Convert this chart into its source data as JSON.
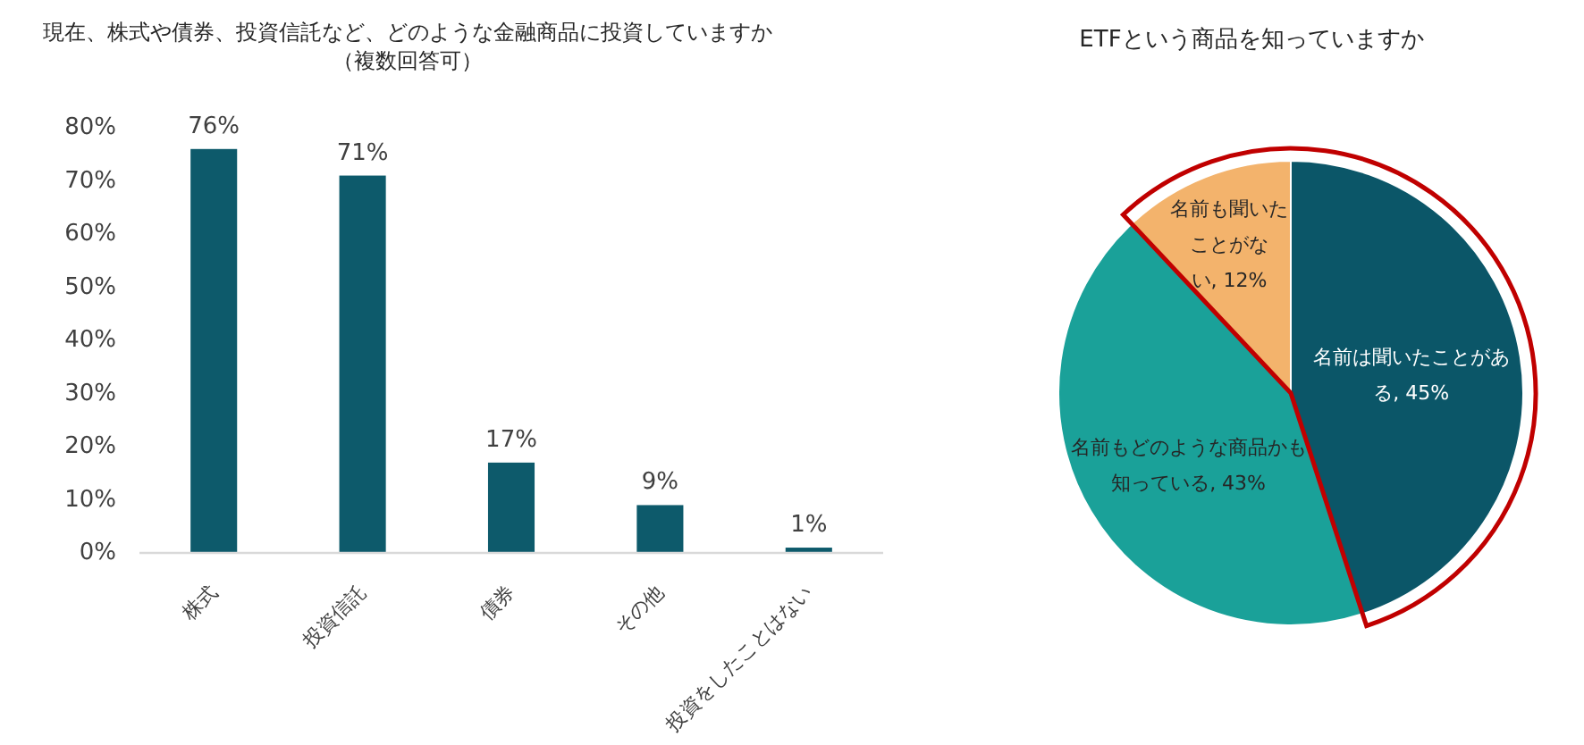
{
  "chart_data": [
    {
      "type": "bar",
      "title": "現在、株式や債券、投資信託など、どのような金融商品に投資していますか",
      "subtitle": "（複数回答可）",
      "categories": [
        "株式",
        "投資信託",
        "債券",
        "その他",
        "投資をしたことはない"
      ],
      "values": [
        76,
        71,
        17,
        9,
        1
      ],
      "color": "#0d5a6b",
      "value_labels": [
        "76%",
        "71%",
        "17%",
        "9%",
        "1%"
      ],
      "ylim": [
        0,
        80
      ],
      "yticks": [
        {
          "value": 0,
          "label": "0%"
        },
        {
          "value": 10,
          "label": "10%"
        },
        {
          "value": 20,
          "label": "20%"
        },
        {
          "value": 30,
          "label": "30%"
        },
        {
          "value": 40,
          "label": "40%"
        },
        {
          "value": 50,
          "label": "50%"
        },
        {
          "value": 60,
          "label": "60%"
        },
        {
          "value": 70,
          "label": "70%"
        },
        {
          "value": 80,
          "label": "80%"
        }
      ]
    },
    {
      "type": "pie",
      "title": "ETFという商品を知っていますか",
      "categories": [
        "名前は聞いたことがある",
        "名前もどのような商品かも知っている",
        "名前も聞いたことがない"
      ],
      "values": [
        45,
        43,
        12
      ],
      "colors": [
        "#0b5668",
        "#1aa199",
        "#f3b36c"
      ],
      "value_labels": [
        "45%",
        "43%",
        "12%"
      ]
    }
  ]
}
